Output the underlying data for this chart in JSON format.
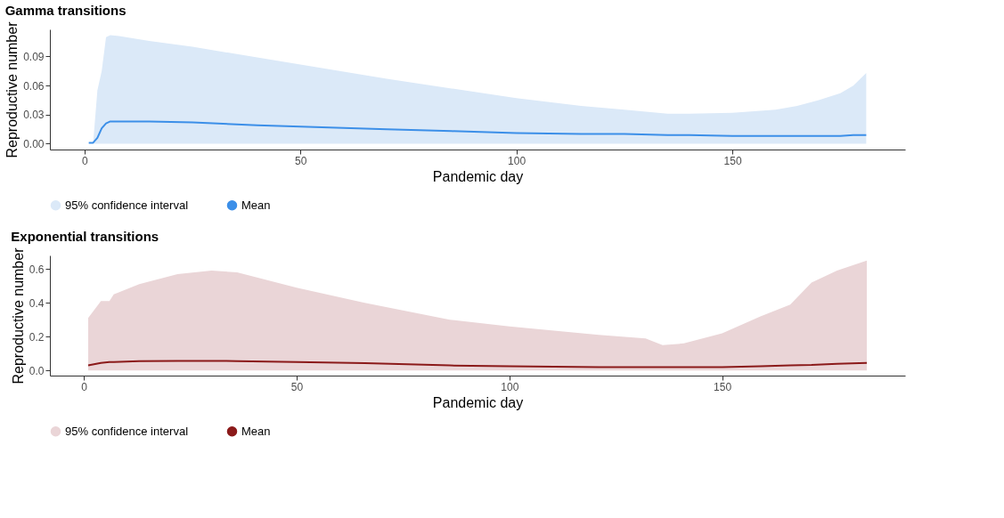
{
  "chart_data": [
    {
      "type": "line",
      "title": "Gamma transitions",
      "xlabel": "Pandemic day",
      "ylabel": "Reproductive number",
      "xlim": [
        -8,
        190
      ],
      "xticks": [
        0,
        50,
        100,
        150
      ],
      "ylim": [
        -0.006,
        0.118
      ],
      "yticks": [
        {
          "value": 0,
          "label": "0.00"
        },
        {
          "value": 0.03,
          "label": "0.03"
        },
        {
          "value": 0.06,
          "label": "0.06"
        },
        {
          "value": 0.09,
          "label": "0.09"
        }
      ],
      "grid": false,
      "legend": "bottom",
      "x": [
        1,
        2,
        3,
        4,
        5,
        6,
        8,
        15,
        25,
        40,
        55,
        70,
        85,
        100,
        115,
        125,
        135,
        140,
        150,
        160,
        165,
        170,
        175,
        178,
        181
      ],
      "series": [
        {
          "name": "95% confidence interval",
          "type": "area",
          "color": "#dbe9f8",
          "values": [
            0,
            0,
            0.055,
            0.075,
            0.11,
            0.112,
            0.111,
            0.106,
            0.1,
            0.089,
            0.078,
            0.067,
            0.057,
            0.047,
            0.039,
            0.035,
            0.031,
            0.031,
            0.032,
            0.035,
            0.039,
            0.045,
            0.052,
            0.06,
            0.073
          ]
        },
        {
          "name": "Mean",
          "color": "#3c8fe8",
          "values": [
            0.001,
            0.001,
            0.006,
            0.016,
            0.021,
            0.023,
            0.023,
            0.023,
            0.022,
            0.019,
            0.017,
            0.015,
            0.013,
            0.011,
            0.01,
            0.01,
            0.009,
            0.009,
            0.008,
            0.008,
            0.008,
            0.008,
            0.008,
            0.009,
            0.009
          ]
        }
      ]
    },
    {
      "type": "line",
      "title": "Exponential transitions",
      "xlabel": "Pandemic day",
      "ylabel": "Reproductive number",
      "xlim": [
        -8,
        193
      ],
      "xticks": [
        0,
        50,
        100,
        150
      ],
      "ylim": [
        -0.03,
        0.68
      ],
      "yticks": [
        {
          "value": 0,
          "label": "0.0"
        },
        {
          "value": 0.2,
          "label": "0.2"
        },
        {
          "value": 0.4,
          "label": "0.4"
        },
        {
          "value": 0.6,
          "label": "0.6"
        }
      ],
      "grid": false,
      "legend": "bottom",
      "x": [
        1,
        4,
        6,
        7,
        13,
        22,
        30,
        36,
        50,
        66,
        86,
        100,
        121,
        132,
        136,
        141,
        150,
        159,
        166,
        171,
        177,
        184
      ],
      "series": [
        {
          "name": "95% confidence interval",
          "type": "area",
          "color": "#ead5d7",
          "values": [
            0.31,
            0.41,
            0.41,
            0.45,
            0.51,
            0.57,
            0.59,
            0.58,
            0.49,
            0.4,
            0.3,
            0.26,
            0.21,
            0.19,
            0.15,
            0.16,
            0.22,
            0.32,
            0.39,
            0.52,
            0.59,
            0.65
          ]
        },
        {
          "name": "Mean",
          "color": "#8b1a1a",
          "values": [
            0.03,
            0.045,
            0.05,
            0.05,
            0.055,
            0.057,
            0.057,
            0.056,
            0.05,
            0.043,
            0.03,
            0.025,
            0.02,
            0.02,
            0.02,
            0.02,
            0.02,
            0.025,
            0.03,
            0.033,
            0.04,
            0.045
          ]
        }
      ]
    }
  ]
}
